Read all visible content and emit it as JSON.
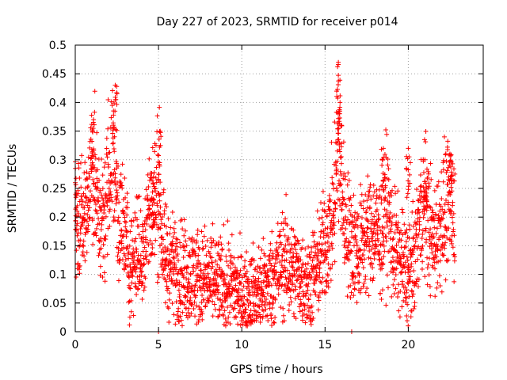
{
  "chart_data": {
    "type": "scatter",
    "title": "Day 227 of 2023, SRMTID for receiver p014",
    "xlabel": "GPS time / hours",
    "ylabel": "SRMTID / TECUs",
    "xlim": [
      0,
      24.5
    ],
    "ylim": [
      0,
      0.5
    ],
    "xticks": [
      0,
      5,
      10,
      15,
      20
    ],
    "yticks": [
      0,
      0.05,
      0.1,
      0.15,
      0.2,
      0.25,
      0.3,
      0.35,
      0.4,
      0.45,
      0.5
    ],
    "xtick_labels": [
      "0",
      "5",
      "10",
      "15",
      "20"
    ],
    "ytick_labels": [
      "0",
      "0.05",
      "0.1",
      "0.15",
      "0.2",
      "0.25",
      "0.3",
      "0.35",
      "0.4",
      "0.45",
      "0.5"
    ],
    "grid": true,
    "marker": "+",
    "series": [
      {
        "name": "SRMTID",
        "color": "#ff0000",
        "profile": [
          [
            0.0,
            0.21
          ],
          [
            0.3,
            0.18
          ],
          [
            0.7,
            0.22
          ],
          [
            1.0,
            0.3
          ],
          [
            1.3,
            0.22
          ],
          [
            1.7,
            0.18
          ],
          [
            2.0,
            0.28
          ],
          [
            2.3,
            0.31
          ],
          [
            2.6,
            0.2
          ],
          [
            3.0,
            0.17
          ],
          [
            3.3,
            0.11
          ],
          [
            3.7,
            0.15
          ],
          [
            4.0,
            0.12
          ],
          [
            4.3,
            0.2
          ],
          [
            4.7,
            0.22
          ],
          [
            5.0,
            0.25
          ],
          [
            5.3,
            0.13
          ],
          [
            6.0,
            0.11
          ],
          [
            7.0,
            0.1
          ],
          [
            8.0,
            0.09
          ],
          [
            9.0,
            0.08
          ],
          [
            9.5,
            0.08
          ],
          [
            10.0,
            0.06
          ],
          [
            10.5,
            0.065
          ],
          [
            11.0,
            0.07
          ],
          [
            11.5,
            0.08
          ],
          [
            12.0,
            0.1
          ],
          [
            12.5,
            0.12
          ],
          [
            13.0,
            0.11
          ],
          [
            13.5,
            0.1
          ],
          [
            14.0,
            0.08
          ],
          [
            14.5,
            0.11
          ],
          [
            15.0,
            0.15
          ],
          [
            15.5,
            0.2
          ],
          [
            15.8,
            0.32
          ],
          [
            16.0,
            0.24
          ],
          [
            16.3,
            0.18
          ],
          [
            16.7,
            0.15
          ],
          [
            17.0,
            0.14
          ],
          [
            17.5,
            0.17
          ],
          [
            18.0,
            0.18
          ],
          [
            18.4,
            0.16
          ],
          [
            18.7,
            0.23
          ],
          [
            19.0,
            0.16
          ],
          [
            19.5,
            0.12
          ],
          [
            20.0,
            0.1
          ],
          [
            20.3,
            0.11
          ],
          [
            20.7,
            0.2
          ],
          [
            21.0,
            0.23
          ],
          [
            21.5,
            0.15
          ],
          [
            22.0,
            0.2
          ],
          [
            22.5,
            0.22
          ],
          [
            22.8,
            0.21
          ]
        ],
        "peaks": [
          [
            2.4,
            0.43
          ],
          [
            15.8,
            0.47
          ],
          [
            15.9,
            0.4
          ],
          [
            18.5,
            0.32
          ],
          [
            20.0,
            0.32
          ],
          [
            1.1,
            0.37
          ],
          [
            5.1,
            0.35
          ],
          [
            22.5,
            0.31
          ],
          [
            21.0,
            0.3
          ],
          [
            4.7,
            0.27
          ],
          [
            0.0,
            0.26
          ]
        ],
        "outliers": [
          [
            5.0,
            0.0
          ],
          [
            16.6,
            0.0
          ]
        ]
      }
    ]
  }
}
